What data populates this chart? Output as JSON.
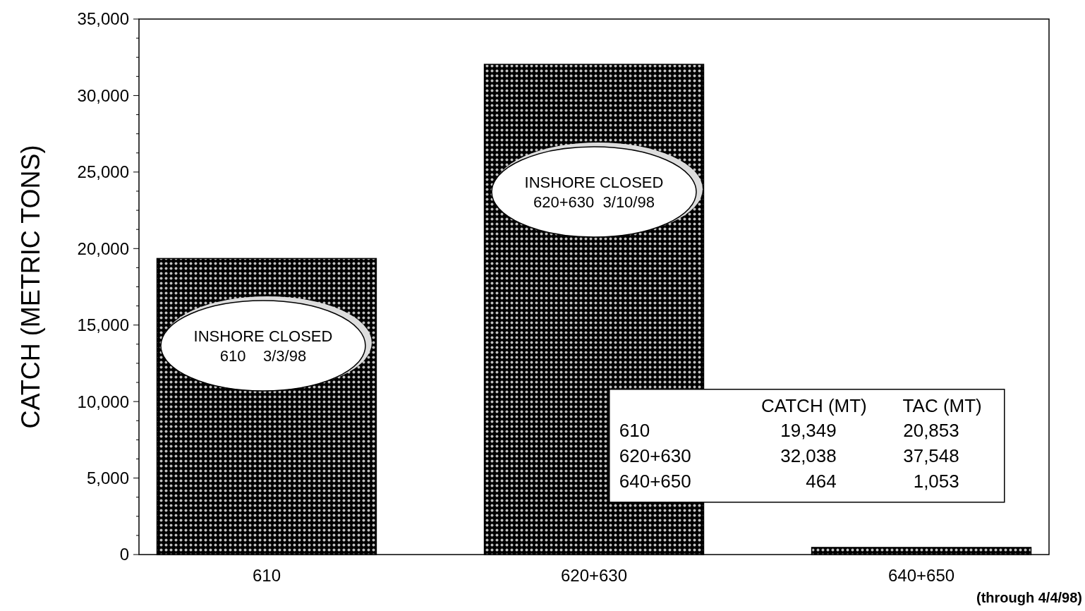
{
  "chart_data": {
    "type": "bar",
    "ylabel": "CATCH (METRIC TONS)",
    "categories": [
      "610",
      "620+630",
      "640+650"
    ],
    "series": [
      {
        "name": "CATCH (MT)",
        "color": "#000000",
        "values": [
          19349,
          32038,
          464
        ]
      }
    ],
    "ylim": [
      0,
      35000
    ],
    "yticks": [
      0,
      {
        "value": 1250,
        "label": null
      },
      {
        "value": 2500,
        "label": null
      },
      {
        "value": 3750,
        "label": null
      },
      {
        "value": 5000,
        "label": "5,000"
      },
      {
        "value": 6250,
        "label": null
      },
      {
        "value": 7500,
        "label": null
      },
      {
        "value": 8750,
        "label": null
      },
      {
        "value": 10000,
        "label": "10,000"
      },
      {
        "value": 11250,
        "label": null
      },
      {
        "value": 12500,
        "label": null
      },
      {
        "value": 13750,
        "label": null
      },
      {
        "value": 15000,
        "label": "15,000"
      },
      {
        "value": 16250,
        "label": null
      },
      {
        "value": 17500,
        "label": null
      },
      {
        "value": 18750,
        "label": null
      },
      {
        "value": 20000,
        "label": "20,000"
      },
      {
        "value": 21250,
        "label": null
      },
      {
        "value": 22500,
        "label": null
      },
      {
        "value": 23750,
        "label": null
      },
      {
        "value": 25000,
        "label": "25,000"
      },
      {
        "value": 26250,
        "label": null
      },
      {
        "value": 27500,
        "label": null
      },
      {
        "value": 28750,
        "label": null
      },
      {
        "value": 30000,
        "label": "30,000"
      },
      {
        "value": 31250,
        "label": null
      },
      {
        "value": 32500,
        "label": null
      },
      {
        "value": 33750,
        "label": null
      },
      {
        "value": 35000,
        "label": "35,000"
      }
    ],
    "grid": false,
    "annotations": [
      "INSHORE CLOSED\n610    3/3/98",
      "INSHORE CLOSED\n620+630  3/10/98",
      "19,349",
      "32,038",
      "464",
      "TAC (MT)",
      "20,853",
      "37,548",
      "1,053",
      "(through 4/4/98)"
    ]
  }
}
